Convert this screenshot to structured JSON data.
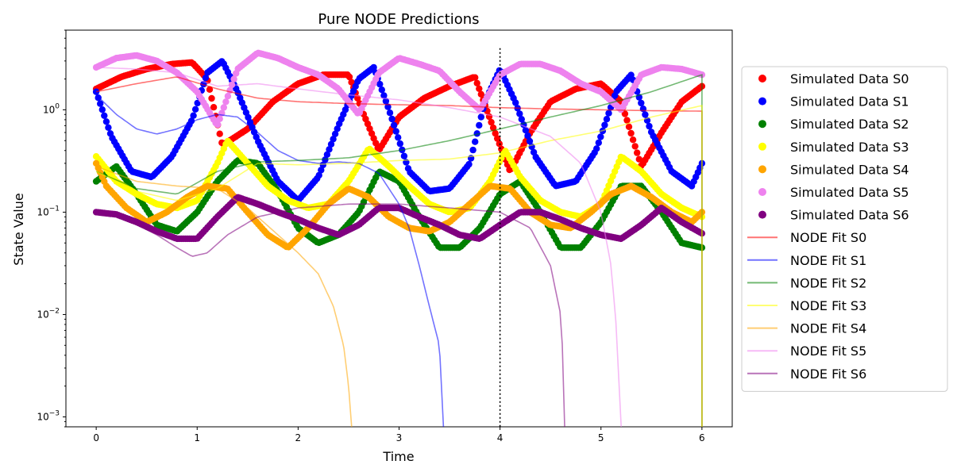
{
  "chart_data": {
    "type": "scatter",
    "title": "Pure NODE Predictions",
    "xlabel": "Time",
    "ylabel": "State Value",
    "xlim": [
      -0.3,
      6.3
    ],
    "ylim": [
      0.0008,
      6
    ],
    "yscale": "log",
    "x_ticks": [
      "0",
      "1",
      "2",
      "3",
      "4",
      "5",
      "6"
    ],
    "y_ticks": [
      "10^-3",
      "10^-2",
      "10^-1",
      "10^0"
    ],
    "grid": false,
    "legend_position": "right",
    "vline": {
      "x": 4,
      "style": "dotted",
      "color": "#000000"
    },
    "series": [
      {
        "name": "Simulated Data S0",
        "kind": "points",
        "color": "#ff0000",
        "x": [
          0,
          0.25,
          0.5,
          0.75,
          0.95,
          1.1,
          1.25,
          1.5,
          1.75,
          2,
          2.25,
          2.5,
          2.65,
          2.8,
          3,
          3.25,
          3.5,
          3.75,
          3.95,
          4.1,
          4.3,
          4.5,
          4.75,
          5,
          5.2,
          5.4,
          5.6,
          5.8,
          6
        ],
        "y": [
          1.6,
          2.1,
          2.5,
          2.8,
          2.9,
          2.0,
          0.45,
          0.65,
          1.2,
          1.8,
          2.2,
          2.2,
          0.9,
          0.4,
          0.85,
          1.3,
          1.7,
          2.1,
          0.6,
          0.25,
          0.6,
          1.2,
          1.6,
          1.8,
          1.2,
          0.28,
          0.6,
          1.2,
          1.7
        ]
      },
      {
        "name": "Simulated Data S1",
        "kind": "points",
        "color": "#0000ff",
        "x": [
          0,
          0.15,
          0.35,
          0.55,
          0.75,
          0.95,
          1.1,
          1.25,
          1.4,
          1.6,
          1.8,
          2,
          2.2,
          2.4,
          2.6,
          2.75,
          2.9,
          3.1,
          3.3,
          3.5,
          3.7,
          3.85,
          4,
          4.15,
          4.35,
          4.55,
          4.75,
          4.95,
          5.15,
          5.3,
          5.5,
          5.7,
          5.9,
          6
        ],
        "y": [
          1.5,
          0.55,
          0.25,
          0.22,
          0.35,
          0.8,
          2.3,
          3.0,
          1.5,
          0.5,
          0.2,
          0.13,
          0.22,
          0.7,
          2.0,
          2.6,
          1.0,
          0.25,
          0.16,
          0.17,
          0.3,
          1.2,
          2.5,
          1.2,
          0.35,
          0.18,
          0.2,
          0.4,
          1.5,
          2.2,
          0.6,
          0.25,
          0.18,
          0.3
        ]
      },
      {
        "name": "Simulated Data S2",
        "kind": "points",
        "color": "#008000",
        "x": [
          0,
          0.2,
          0.4,
          0.6,
          0.8,
          1,
          1.2,
          1.4,
          1.6,
          1.8,
          2,
          2.2,
          2.4,
          2.6,
          2.8,
          3,
          3.2,
          3.4,
          3.6,
          3.8,
          4,
          4.2,
          4.4,
          4.6,
          4.8,
          5,
          5.2,
          5.4,
          5.6,
          5.8,
          6
        ],
        "y": [
          0.2,
          0.28,
          0.15,
          0.075,
          0.065,
          0.1,
          0.2,
          0.32,
          0.3,
          0.16,
          0.07,
          0.05,
          0.06,
          0.1,
          0.25,
          0.2,
          0.09,
          0.045,
          0.045,
          0.07,
          0.15,
          0.2,
          0.1,
          0.045,
          0.045,
          0.08,
          0.18,
          0.18,
          0.1,
          0.05,
          0.045
        ]
      },
      {
        "name": "Simulated Data S3",
        "kind": "points",
        "color": "#ffff00",
        "x": [
          0,
          0.2,
          0.4,
          0.6,
          0.8,
          1,
          1.2,
          1.3,
          1.5,
          1.7,
          1.9,
          2.1,
          2.3,
          2.5,
          2.7,
          2.9,
          3.1,
          3.3,
          3.5,
          3.7,
          3.9,
          4.05,
          4.2,
          4.4,
          4.6,
          4.8,
          5,
          5.2,
          5.4,
          5.6,
          5.8,
          6
        ],
        "y": [
          0.35,
          0.2,
          0.15,
          0.12,
          0.11,
          0.13,
          0.3,
          0.5,
          0.3,
          0.18,
          0.13,
          0.11,
          0.12,
          0.2,
          0.42,
          0.28,
          0.18,
          0.12,
          0.1,
          0.11,
          0.2,
          0.4,
          0.22,
          0.13,
          0.1,
          0.09,
          0.12,
          0.35,
          0.25,
          0.15,
          0.11,
          0.09
        ]
      },
      {
        "name": "Simulated Data S4",
        "kind": "points",
        "color": "#ffa500",
        "x": [
          0,
          0.1,
          0.3,
          0.5,
          0.7,
          0.9,
          1.1,
          1.3,
          1.5,
          1.7,
          1.9,
          2.1,
          2.3,
          2.5,
          2.7,
          2.9,
          3.1,
          3.3,
          3.5,
          3.7,
          3.9,
          4.1,
          4.3,
          4.5,
          4.7,
          4.9,
          5.1,
          5.3,
          5.5,
          5.7,
          5.9,
          6
        ],
        "y": [
          0.3,
          0.18,
          0.11,
          0.08,
          0.1,
          0.14,
          0.18,
          0.17,
          0.1,
          0.06,
          0.045,
          0.07,
          0.12,
          0.17,
          0.14,
          0.09,
          0.07,
          0.065,
          0.08,
          0.12,
          0.18,
          0.17,
          0.1,
          0.075,
          0.07,
          0.1,
          0.15,
          0.18,
          0.14,
          0.1,
          0.08,
          0.1
        ]
      },
      {
        "name": "Simulated Data S5",
        "kind": "points",
        "color": "#ee82ee",
        "x": [
          0,
          0.2,
          0.4,
          0.6,
          0.8,
          1,
          1.2,
          1.4,
          1.6,
          1.8,
          2,
          2.2,
          2.4,
          2.6,
          2.8,
          3,
          3.2,
          3.4,
          3.6,
          3.8,
          4,
          4.2,
          4.4,
          4.6,
          4.8,
          5,
          5.2,
          5.4,
          5.6,
          5.8,
          6
        ],
        "y": [
          2.6,
          3.2,
          3.4,
          3.0,
          2.3,
          1.5,
          0.7,
          2.5,
          3.6,
          3.2,
          2.6,
          2.2,
          1.6,
          0.9,
          2.3,
          3.2,
          2.8,
          2.4,
          1.5,
          1.0,
          2.2,
          2.8,
          2.8,
          2.4,
          1.8,
          1.5,
          1.0,
          2.2,
          2.6,
          2.5,
          2.2
        ]
      },
      {
        "name": "Simulated Data S6",
        "kind": "points",
        "color": "#800080",
        "x": [
          0,
          0.2,
          0.4,
          0.6,
          0.8,
          1,
          1.2,
          1.4,
          1.6,
          1.8,
          2,
          2.2,
          2.4,
          2.6,
          2.8,
          3,
          3.2,
          3.4,
          3.6,
          3.8,
          4,
          4.2,
          4.4,
          4.6,
          4.8,
          5,
          5.2,
          5.4,
          5.6,
          5.8,
          6
        ],
        "y": [
          0.1,
          0.095,
          0.08,
          0.065,
          0.055,
          0.055,
          0.09,
          0.14,
          0.12,
          0.1,
          0.085,
          0.07,
          0.06,
          0.075,
          0.11,
          0.11,
          0.09,
          0.075,
          0.06,
          0.055,
          0.075,
          0.1,
          0.1,
          0.085,
          0.07,
          0.06,
          0.055,
          0.075,
          0.11,
          0.08,
          0.062
        ]
      },
      {
        "name": "NODE Fit S0",
        "kind": "line",
        "color": "#ff0000",
        "x": [
          0,
          0.4,
          0.8,
          1.2,
          1.6,
          2,
          2.5,
          3,
          3.5,
          4,
          4.5,
          5,
          5.5,
          6
        ],
        "y": [
          1.5,
          1.8,
          2.1,
          1.6,
          1.3,
          1.2,
          1.15,
          1.12,
          1.1,
          1.05,
          1.02,
          1,
          0.98,
          0.97
        ]
      },
      {
        "name": "NODE Fit S1",
        "kind": "line",
        "color": "#0000ff",
        "x": [
          0,
          0.2,
          0.4,
          0.6,
          0.8,
          1,
          1.2,
          1.4,
          1.6,
          1.8,
          2,
          2.2,
          2.4,
          2.6,
          2.8,
          3,
          3.1,
          3.2,
          3.3,
          3.4,
          3.44
        ],
        "y": [
          1.4,
          0.9,
          0.65,
          0.58,
          0.65,
          0.8,
          0.9,
          0.85,
          0.6,
          0.4,
          0.32,
          0.3,
          0.31,
          0.3,
          0.24,
          0.12,
          0.07,
          0.03,
          0.012,
          0.005,
          0.0008
        ]
      },
      {
        "name": "NODE Fit S2",
        "kind": "line",
        "color": "#008000",
        "x": [
          0,
          0.4,
          0.8,
          1.2,
          1.6,
          2,
          2.5,
          3,
          3.5,
          4,
          4.5,
          5,
          5.5,
          6
        ],
        "y": [
          0.25,
          0.17,
          0.15,
          0.25,
          0.31,
          0.32,
          0.34,
          0.4,
          0.5,
          0.65,
          0.85,
          1.1,
          1.5,
          2.2
        ]
      },
      {
        "name": "NODE Fit S3",
        "kind": "line",
        "color": "#ffff00",
        "x": [
          0,
          0.4,
          0.8,
          1.2,
          1.6,
          2,
          2.5,
          3,
          3.5,
          4,
          4.5,
          5,
          5.5,
          6
        ],
        "y": [
          0.25,
          0.16,
          0.13,
          0.17,
          0.3,
          0.29,
          0.3,
          0.32,
          0.33,
          0.38,
          0.5,
          0.62,
          0.85,
          1.1
        ]
      },
      {
        "name": "NODE Fit S4",
        "kind": "line",
        "color": "#ffa500",
        "x": [
          0,
          0.4,
          0.8,
          1.2,
          1.5,
          1.8,
          2,
          2.2,
          2.35,
          2.45,
          2.5,
          2.53
        ],
        "y": [
          0.28,
          0.2,
          0.18,
          0.17,
          0.11,
          0.06,
          0.04,
          0.025,
          0.012,
          0.005,
          0.002,
          0.0008
        ]
      },
      {
        "name": "NODE Fit S5",
        "kind": "line",
        "color": "#ee82ee",
        "x": [
          0,
          0.4,
          0.8,
          1.2,
          1.6,
          2,
          2.5,
          3,
          3.5,
          4,
          4.5,
          4.8,
          5,
          5.1,
          5.15,
          5.2
        ],
        "y": [
          2.6,
          2.5,
          2.3,
          1.7,
          1.8,
          1.6,
          1.4,
          1.25,
          1.05,
          0.85,
          0.55,
          0.3,
          0.1,
          0.03,
          0.008,
          0.0008
        ]
      },
      {
        "name": "NODE Fit S6",
        "kind": "line",
        "color": "#800080",
        "x": [
          0,
          0.3,
          0.6,
          0.8,
          0.95,
          1.1,
          1.3,
          1.6,
          2,
          2.5,
          3,
          3.5,
          4,
          4.3,
          4.5,
          4.6,
          4.63,
          4.64
        ],
        "y": [
          0.1,
          0.085,
          0.06,
          0.045,
          0.037,
          0.04,
          0.06,
          0.09,
          0.11,
          0.12,
          0.12,
          0.11,
          0.1,
          0.07,
          0.03,
          0.01,
          0.003,
          0.0008
        ]
      }
    ]
  }
}
